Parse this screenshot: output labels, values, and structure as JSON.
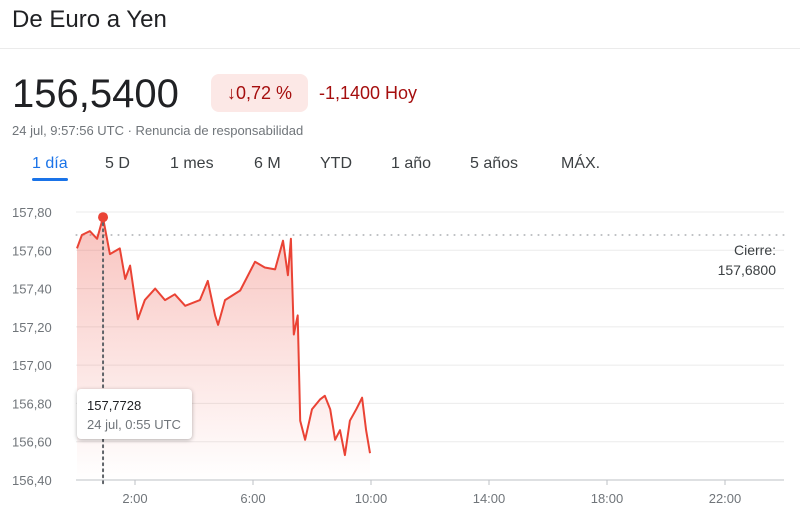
{
  "header": {
    "title": "De Euro a Yen"
  },
  "quote": {
    "price": "156,5400",
    "change_pct": "↓0,72 %",
    "change_abs": "-1,1400 Hoy",
    "timestamp": "24 jul, 9:57:56 UTC · Renuncia de responsabilidad"
  },
  "tabs": [
    {
      "label": "1 día",
      "active": true
    },
    {
      "label": "5 D"
    },
    {
      "label": "1 mes"
    },
    {
      "label": "6 M"
    },
    {
      "label": "YTD"
    },
    {
      "label": "1 año"
    },
    {
      "label": "5 años"
    },
    {
      "label": "MÁX."
    }
  ],
  "colors": {
    "line": "#ea4335",
    "negative": "#a50e0e",
    "accent": "#1a73e8"
  },
  "chart_data": {
    "type": "area",
    "ylim": [
      156.4,
      157.8
    ],
    "xlim": [
      "0:00",
      "24:00"
    ],
    "yticks": [
      "157,80",
      "157,60",
      "157,40",
      "157,20",
      "157,00",
      "156,80",
      "156,60",
      "156,40"
    ],
    "ytick_values": [
      157.8,
      157.6,
      157.4,
      157.2,
      157.0,
      156.8,
      156.6,
      156.4
    ],
    "xticks": [
      "2:00",
      "6:00",
      "10:00",
      "14:00",
      "18:00",
      "22:00"
    ],
    "previous_close": {
      "label": "Cierre:",
      "value": "157,6800",
      "y": 157.68
    },
    "tooltip": {
      "value": "157,7728",
      "time_label": "24 jul, 0:55 UTC",
      "x": "0:55",
      "y": 157.7728
    },
    "x": [
      "0:02",
      "0:12",
      "0:28",
      "0:43",
      "0:55",
      "1:09",
      "1:29",
      "1:40",
      "1:50",
      "2:06",
      "2:20",
      "2:41",
      "3:01",
      "3:21",
      "3:42",
      "4:12",
      "4:28",
      "4:43",
      "4:49",
      "5:03",
      "5:34",
      "6:04",
      "6:24",
      "6:45",
      "7:01",
      "7:11",
      "7:17",
      "7:23",
      "7:31",
      "7:36",
      "7:46",
      "8:00",
      "8:16",
      "8:26",
      "8:37",
      "8:47",
      "8:57",
      "9:07",
      "9:17",
      "9:30",
      "9:42",
      "9:50",
      "9:58"
    ],
    "y": [
      157.61,
      157.68,
      157.7,
      157.66,
      157.77,
      157.58,
      157.61,
      157.45,
      157.52,
      157.24,
      157.34,
      157.4,
      157.34,
      157.37,
      157.31,
      157.34,
      157.44,
      157.26,
      157.21,
      157.34,
      157.39,
      157.54,
      157.51,
      157.5,
      157.65,
      157.47,
      157.66,
      157.16,
      157.26,
      156.71,
      156.61,
      156.77,
      156.82,
      156.84,
      156.77,
      156.61,
      156.66,
      156.53,
      156.71,
      156.77,
      156.83,
      156.66,
      156.54
    ]
  }
}
